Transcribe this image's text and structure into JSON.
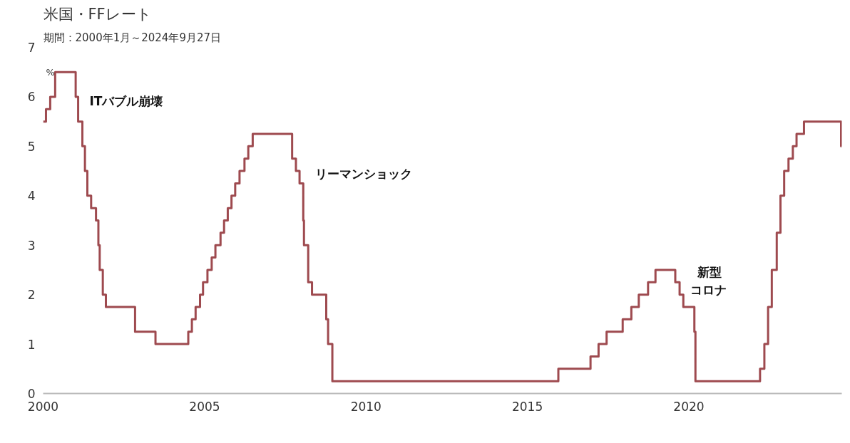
{
  "chart_data": {
    "type": "step",
    "title": "米国・FFレート",
    "subtitle": "期間：2000年1月～2024年9月27日",
    "ylabel": "%",
    "x": [
      "2000-01-01",
      "2000-02-02",
      "2000-03-21",
      "2000-05-16",
      "2001-01-03",
      "2001-01-31",
      "2001-03-20",
      "2001-04-18",
      "2001-05-15",
      "2001-06-27",
      "2001-08-21",
      "2001-09-17",
      "2001-10-02",
      "2001-11-06",
      "2001-12-11",
      "2002-11-06",
      "2003-06-25",
      "2004-06-30",
      "2004-08-10",
      "2004-09-21",
      "2004-11-10",
      "2004-12-14",
      "2005-02-02",
      "2005-03-22",
      "2005-05-03",
      "2005-06-30",
      "2005-08-09",
      "2005-09-20",
      "2005-11-01",
      "2005-12-13",
      "2006-01-31",
      "2006-03-28",
      "2006-05-10",
      "2006-06-29",
      "2007-09-18",
      "2007-10-31",
      "2007-12-11",
      "2008-01-22",
      "2008-01-30",
      "2008-03-18",
      "2008-04-30",
      "2008-10-08",
      "2008-10-29",
      "2008-12-16",
      "2015-12-17",
      "2016-12-15",
      "2017-03-16",
      "2017-06-15",
      "2017-12-14",
      "2018-03-22",
      "2018-06-14",
      "2018-09-27",
      "2018-12-20",
      "2019-08-01",
      "2019-09-19",
      "2019-10-31",
      "2020-03-04",
      "2020-03-16",
      "2022-03-17",
      "2022-05-05",
      "2022-06-16",
      "2022-07-28",
      "2022-09-22",
      "2022-11-03",
      "2022-12-15",
      "2023-02-02",
      "2023-03-23",
      "2023-05-04",
      "2023-07-27",
      "2024-09-19",
      "2024-09-27"
    ],
    "series": [
      {
        "color": "#9e4a4f",
        "values": [
          5.5,
          5.75,
          6.0,
          6.5,
          6.0,
          5.5,
          5.0,
          4.5,
          4.0,
          3.75,
          3.5,
          3.0,
          2.5,
          2.0,
          1.75,
          1.25,
          1.0,
          1.25,
          1.5,
          1.75,
          2.0,
          2.25,
          2.5,
          2.75,
          3.0,
          3.25,
          3.5,
          3.75,
          4.0,
          4.25,
          4.5,
          4.75,
          5.0,
          5.25,
          4.75,
          4.5,
          4.25,
          3.5,
          3.0,
          2.25,
          2.0,
          1.5,
          1.0,
          0.25,
          0.5,
          0.75,
          1.0,
          1.25,
          1.5,
          1.75,
          2.0,
          2.25,
          2.5,
          2.25,
          2.0,
          1.75,
          1.25,
          0.25,
          0.5,
          1.0,
          1.75,
          2.5,
          3.25,
          4.0,
          4.5,
          4.75,
          5.0,
          5.25,
          5.5,
          5.0,
          5.0
        ]
      }
    ],
    "xlim": [
      "2000-01-01",
      "2024-09-27"
    ],
    "xticks": [
      {
        "value": "2000-01-01",
        "label": "2000"
      },
      {
        "value": "2005-01-01",
        "label": "2005"
      },
      {
        "value": "2010-01-01",
        "label": "2010"
      },
      {
        "value": "2015-01-01",
        "label": "2015"
      },
      {
        "value": "2020-01-01",
        "label": "2020"
      }
    ],
    "ylim": [
      0,
      7
    ],
    "yticks": [
      0,
      1,
      2,
      3,
      4,
      5,
      6,
      7
    ],
    "grid": false,
    "annotations": [
      "ITバブル崩壊",
      "リーマンショック",
      "新型コロナ"
    ]
  }
}
